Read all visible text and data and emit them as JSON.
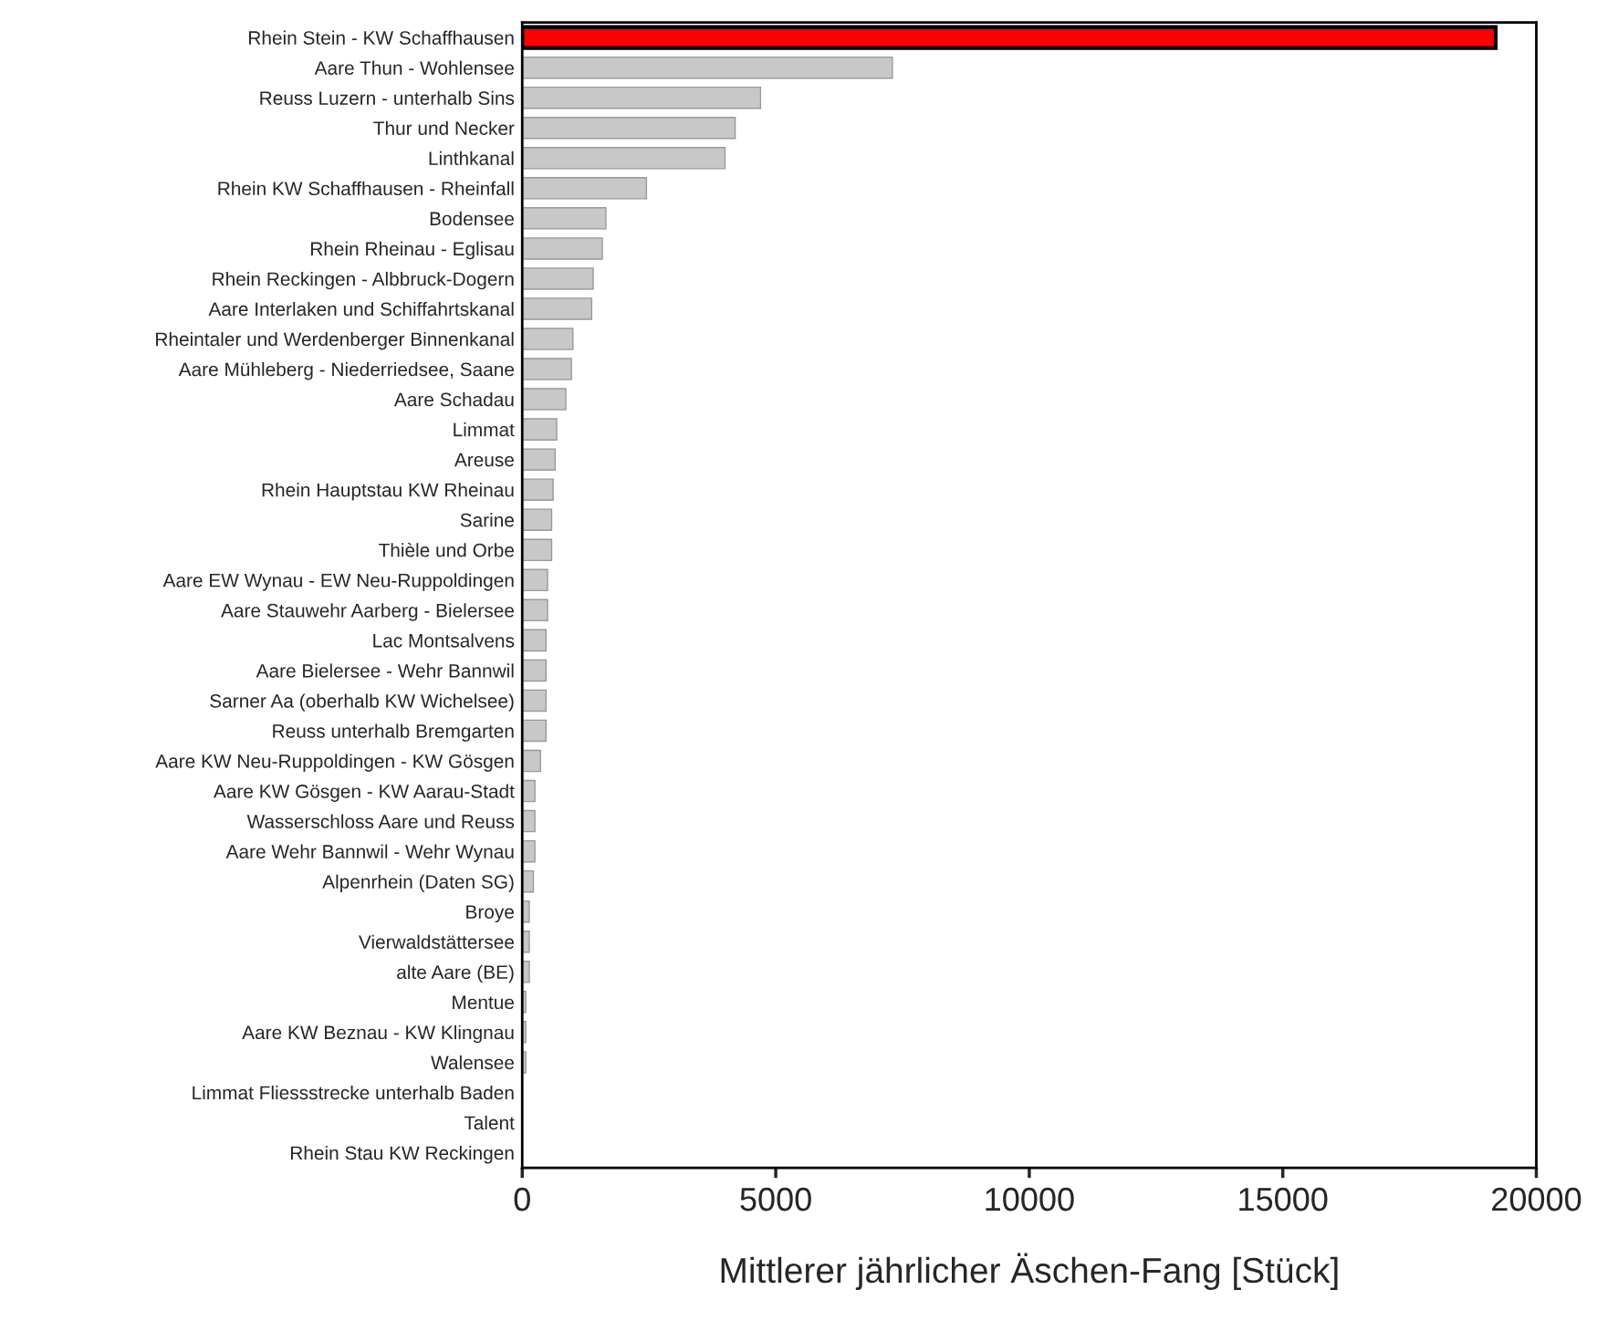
{
  "chart_data": {
    "type": "bar",
    "orientation": "horizontal",
    "xlabel": "Mittlerer jährlicher Äschen-Fang [Stück]",
    "categories": [
      "Rhein Stein - KW Schaffhausen",
      "Aare Thun - Wohlensee",
      "Reuss Luzern - unterhalb Sins",
      "Thur und Necker",
      "Linthkanal",
      "Rhein KW Schaffhausen - Rheinfall",
      "Bodensee",
      "Rhein Rheinau - Eglisau",
      "Rhein Reckingen - Albbruck-Dogern",
      "Aare Interlaken und Schiffahrtskanal",
      "Rheintaler und Werdenberger Binnenkanal",
      "Aare Mühleberg - Niederriedsee, Saane",
      "Aare Schadau",
      "Limmat",
      "Areuse",
      "Rhein Hauptstau KW Rheinau",
      "Sarine",
      "Thièle und Orbe",
      "Aare EW Wynau - EW Neu-Ruppoldingen",
      "Aare Stauwehr Aarberg - Bielersee",
      "Lac Montsalvens",
      "Aare Bielersee - Wehr Bannwil",
      "Sarner Aa (oberhalb KW Wichelsee)",
      "Reuss unterhalb Bremgarten",
      "Aare KW Neu-Ruppoldingen - KW Gösgen",
      "Aare KW Gösgen - KW Aarau-Stadt",
      "Wasserschloss Aare und Reuss",
      "Aare Wehr Bannwil - Wehr Wynau",
      "Alpenrhein (Daten SG)",
      "Broye",
      "Vierwaldstättersee",
      "alte Aare (BE)",
      "Mentue",
      "Aare KW Beznau - KW Klingnau",
      "Walensee",
      "Limmat Fliessstrecke unterhalb Baden",
      "Talent",
      "Rhein Stau KW Reckingen"
    ],
    "values": [
      19200,
      7300,
      4700,
      4200,
      4000,
      2450,
      1650,
      1580,
      1400,
      1370,
      1000,
      970,
      860,
      680,
      650,
      610,
      580,
      580,
      500,
      500,
      470,
      470,
      470,
      470,
      360,
      250,
      250,
      250,
      220,
      140,
      140,
      140,
      70,
      70,
      70,
      0,
      0,
      0
    ],
    "colors": [
      "#ff0000",
      "#c8c8c8",
      "#c8c8c8",
      "#c8c8c8",
      "#c8c8c8",
      "#c8c8c8",
      "#c8c8c8",
      "#c8c8c8",
      "#c8c8c8",
      "#c8c8c8",
      "#c8c8c8",
      "#c8c8c8",
      "#c8c8c8",
      "#c8c8c8",
      "#c8c8c8",
      "#c8c8c8",
      "#c8c8c8",
      "#c8c8c8",
      "#c8c8c8",
      "#c8c8c8",
      "#c8c8c8",
      "#c8c8c8",
      "#c8c8c8",
      "#c8c8c8",
      "#c8c8c8",
      "#c8c8c8",
      "#c8c8c8",
      "#c8c8c8",
      "#c8c8c8",
      "#c8c8c8",
      "#c8c8c8",
      "#c8c8c8",
      "#c8c8c8",
      "#c8c8c8",
      "#c8c8c8",
      "#c8c8c8",
      "#c8c8c8",
      "#c8c8c8"
    ],
    "xlim": [
      0,
      20000
    ],
    "xticks": [
      0,
      5000,
      10000,
      15000,
      20000
    ],
    "grid": false,
    "legend": false
  }
}
